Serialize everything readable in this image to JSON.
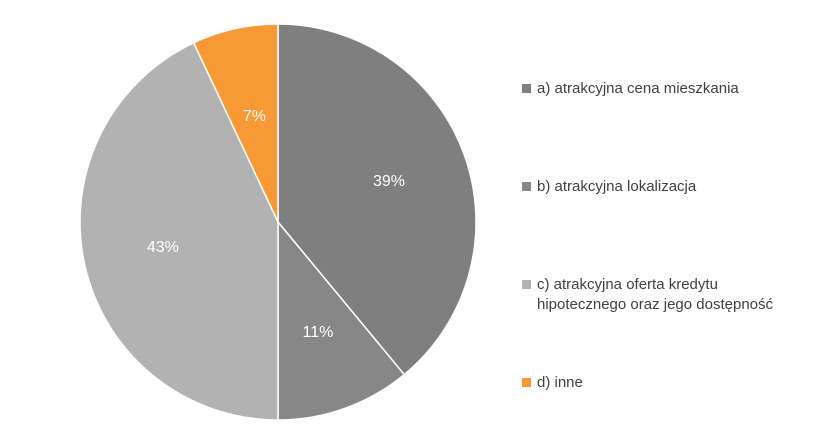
{
  "chart_data": {
    "type": "pie",
    "categories": [
      "a) atrakcyjna cena mieszkania",
      "b) atrakcyjna lokalizacja",
      "c) atrakcyjna oferta kredytu\nhipotecznego oraz jego dostępność",
      "d) inne"
    ],
    "values": [
      39,
      11,
      43,
      7
    ],
    "data_labels": [
      "39%",
      "11%",
      "43%",
      "7%"
    ],
    "colors": [
      "#7f7f7f",
      "#878787",
      "#b2b2b2",
      "#f79a35"
    ],
    "legend_position": "right",
    "start_angle": "12 o'clock",
    "direction": "clockwise"
  }
}
